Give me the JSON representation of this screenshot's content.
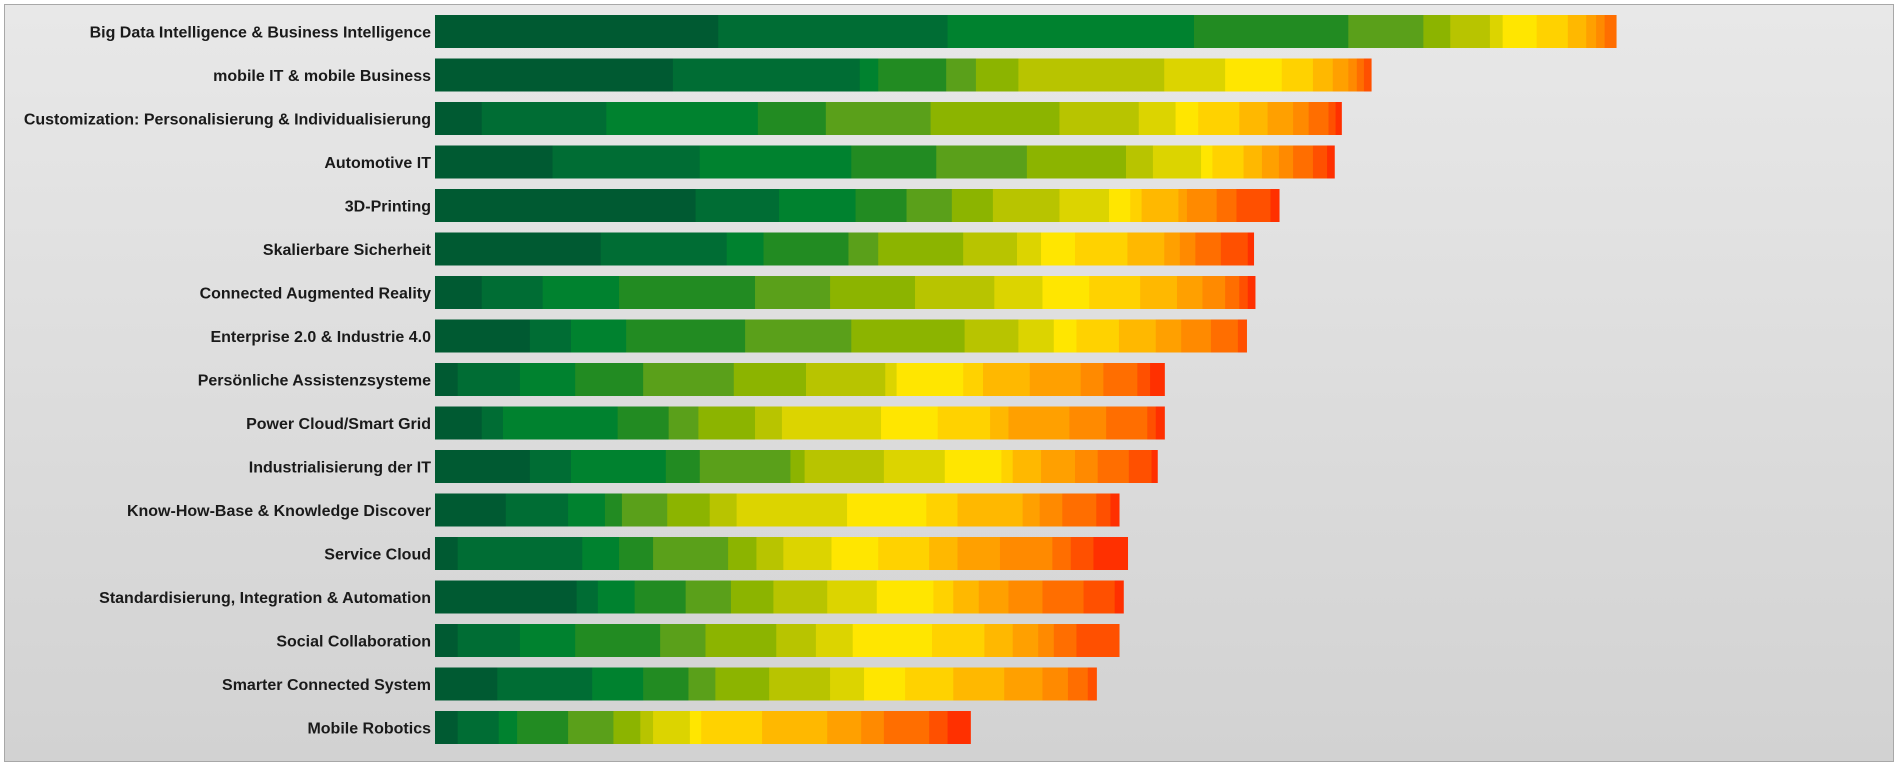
{
  "chart_data": {
    "type": "bar",
    "orientation": "horizontal",
    "stacked": true,
    "title": "",
    "xlabel": "",
    "ylabel": "",
    "legend": "none",
    "grid": false,
    "xlim": [
      0,
      100
    ],
    "palette": [
      "#005a32",
      "#006d34",
      "#00822f",
      "#228b22",
      "#5aa01a",
      "#8cb400",
      "#b8c400",
      "#dcd400",
      "#ffe600",
      "#ffd200",
      "#ffb800",
      "#ffa000",
      "#ff8a00",
      "#ff6e00",
      "#ff5000",
      "#ff3000"
    ],
    "categories": [
      "Big Data Intelligence & Business Intelligence",
      "mobile IT & mobile Business",
      "Customization: Personalisierung & Individualisierung",
      "Automotive IT",
      "3D-Printing",
      "Skalierbare Sicherheit",
      "Connected Augmented Reality",
      "Enterprise 2.0 & Industrie 4.0",
      "Persönliche Assistenzsysteme",
      "Power Cloud/Smart Grid",
      "Industrialisierung der IT",
      "Know-How-Base & Knowledge Discover",
      "Service Cloud",
      "Standardisierung, Integration & Automation",
      "Social Collaboration",
      "Smarter Connected System",
      "Mobile Robotics"
    ],
    "values": [
      [
        20.0,
        16.2,
        17.4,
        10.9,
        5.3,
        1.9,
        2.8,
        0.9,
        2.4,
        2.2,
        1.3,
        0.7,
        0.6,
        0.8
      ],
      [
        16.8,
        13.2,
        1.3,
        4.8,
        2.1,
        3.0,
        10.3,
        4.3,
        4.0,
        2.2,
        1.4,
        1.1,
        0.6,
        0.5,
        0.5
      ],
      [
        3.3,
        8.8,
        10.7,
        4.8,
        7.4,
        9.1,
        5.6,
        2.6,
        1.6,
        2.9,
        2.0,
        1.8,
        1.1,
        1.4,
        0.5,
        0.4
      ],
      [
        8.3,
        10.4,
        10.7,
        6.0,
        6.4,
        7.0,
        1.9,
        3.4,
        0.8,
        2.2,
        1.3,
        1.2,
        1.0,
        1.4,
        1.0,
        0.5
      ],
      [
        18.4,
        5.9,
        5.4,
        3.6,
        3.2,
        2.9,
        4.7,
        3.5,
        1.5,
        0.8,
        2.6,
        0.6,
        2.1,
        1.4,
        2.4,
        0.6
      ],
      [
        11.7,
        8.9,
        2.6,
        6.0,
        2.1,
        6.0,
        3.8,
        1.7,
        2.4,
        3.7,
        2.6,
        1.1,
        1.1,
        1.8,
        1.9,
        0.4
      ],
      [
        3.3,
        4.3,
        5.4,
        9.6,
        5.3,
        6.0,
        5.6,
        3.4,
        3.3,
        3.6,
        2.6,
        1.8,
        1.6,
        1.0,
        0.6,
        0.5
      ],
      [
        6.7,
        2.9,
        3.9,
        8.4,
        7.5,
        8.0,
        3.8,
        2.5,
        1.6,
        3.0,
        2.6,
        1.8,
        2.1,
        1.9,
        0.6
      ],
      [
        1.6,
        4.4,
        3.9,
        4.8,
        6.4,
        5.1,
        5.6,
        0.8,
        4.7,
        1.4,
        3.3,
        3.6,
        1.6,
        2.4,
        0.9,
        1.0
      ],
      [
        3.3,
        1.5,
        8.1,
        3.6,
        2.1,
        4.0,
        1.9,
        7.0,
        4.0,
        3.7,
        1.3,
        4.3,
        2.6,
        2.9,
        0.6,
        0.6
      ],
      [
        6.7,
        2.9,
        6.7,
        2.4,
        6.4,
        1.0,
        5.6,
        4.3,
        4.0,
        0.8,
        2.0,
        2.4,
        1.6,
        2.2,
        1.6,
        0.4
      ],
      [
        5.0,
        4.4,
        2.6,
        1.2,
        3.2,
        3.0,
        1.9,
        7.8,
        5.6,
        2.2,
        4.6,
        1.2,
        1.6,
        2.4,
        1.0,
        0.6
      ],
      [
        1.6,
        8.8,
        2.6,
        2.4,
        5.3,
        2.0,
        1.9,
        3.4,
        3.3,
        3.6,
        2.0,
        3.0,
        3.7,
        1.3,
        1.6,
        1.2,
        1.2
      ],
      [
        10.0,
        1.5,
        2.6,
        3.6,
        3.2,
        3.0,
        3.8,
        3.5,
        4.0,
        1.4,
        1.8,
        2.1,
        2.4,
        2.9,
        2.2,
        0.6
      ],
      [
        1.6,
        4.4,
        3.9,
        6.0,
        3.2,
        5.0,
        2.8,
        2.6,
        5.6,
        3.7,
        2.0,
        1.8,
        1.1,
        1.6,
        3.0
      ],
      [
        4.4,
        6.7,
        3.6,
        3.2,
        1.9,
        3.8,
        4.3,
        2.4,
        2.9,
        3.4,
        3.6,
        2.7,
        1.8,
        1.4,
        0.6
      ],
      [
        1.6,
        2.9,
        1.3,
        3.6,
        3.2,
        1.9,
        0.9,
        2.6,
        0.8,
        4.3,
        4.6,
        2.4,
        1.6,
        3.2,
        1.3,
        1.6
      ]
    ]
  }
}
